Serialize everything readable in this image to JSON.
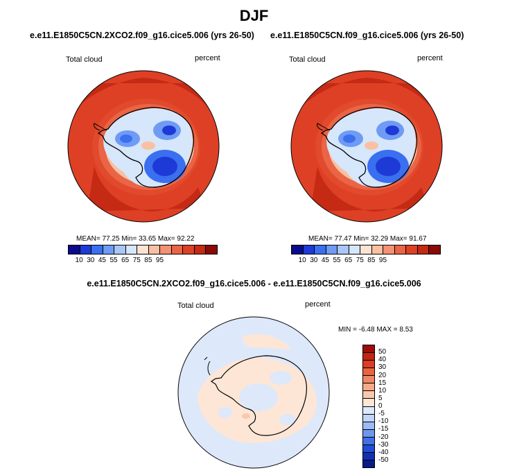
{
  "title": "DJF",
  "colors": {
    "land_outline": "#000000",
    "deep_red": "#c8361f",
    "bright_red": "#e0452a",
    "blue_low": "#2b5be6",
    "neutral_pale": "#fde4d2"
  },
  "panels": [
    {
      "case": "e.e11.E1850C5CN.2XCO2.f09_g16.cice5.006 (yrs 26-50)",
      "variable": "Total cloud",
      "units": "percent",
      "stats": {
        "mean_label": "MEAN=",
        "mean": "77.25",
        "min_label": "Min=",
        "min": "33.65",
        "max_label": "Max=",
        "max": "92.22"
      }
    },
    {
      "case": "e.e11.E1850C5CN.f09_g16.cice5.006 (yrs 26-50)",
      "variable": "Total cloud",
      "units": "percent",
      "stats": {
        "mean_label": "MEAN=",
        "mean": "77.47",
        "min_label": "Min=",
        "min": "32.29",
        "max_label": "Max=",
        "max": "91.67"
      }
    }
  ],
  "abs_colorbar": {
    "labels": [
      "10",
      "30",
      "45",
      "55",
      "65",
      "75",
      "85",
      "95"
    ],
    "colors": [
      "#0a0a8c",
      "#1e3ad6",
      "#3a6ff0",
      "#6f9bf5",
      "#a9c6f7",
      "#d6e6fb",
      "#fde4d2",
      "#f9c0a2",
      "#f39275",
      "#ea6446",
      "#dd4025",
      "#c42a14",
      "#8a0a08"
    ]
  },
  "difference": {
    "title": "e.e11.E1850C5CN.2XCO2.f09_g16.cice5.006 - e.e11.E1850C5CN.f09_g16.cice5.006",
    "variable": "Total cloud",
    "units": "percent",
    "minmax": {
      "min_label": "MIN =",
      "min": "-6.48",
      "max_label": "MAX =",
      "max": "8.53"
    }
  },
  "diff_colorbar": {
    "labels": [
      "50",
      "40",
      "30",
      "20",
      "15",
      "10",
      "5",
      "0",
      "-5",
      "-10",
      "-15",
      "-20",
      "-30",
      "-40",
      "-50"
    ],
    "colors": [
      "#9c0c0a",
      "#c42412",
      "#dd3d22",
      "#e9633f",
      "#f08762",
      "#f5ab8a",
      "#f9c9ad",
      "#fde6d6",
      "#dde8fb",
      "#c1d5f8",
      "#9cbaf4",
      "#6f97ef",
      "#4270e6",
      "#1f4dd6",
      "#1230b2",
      "#0a1a8a"
    ]
  }
}
